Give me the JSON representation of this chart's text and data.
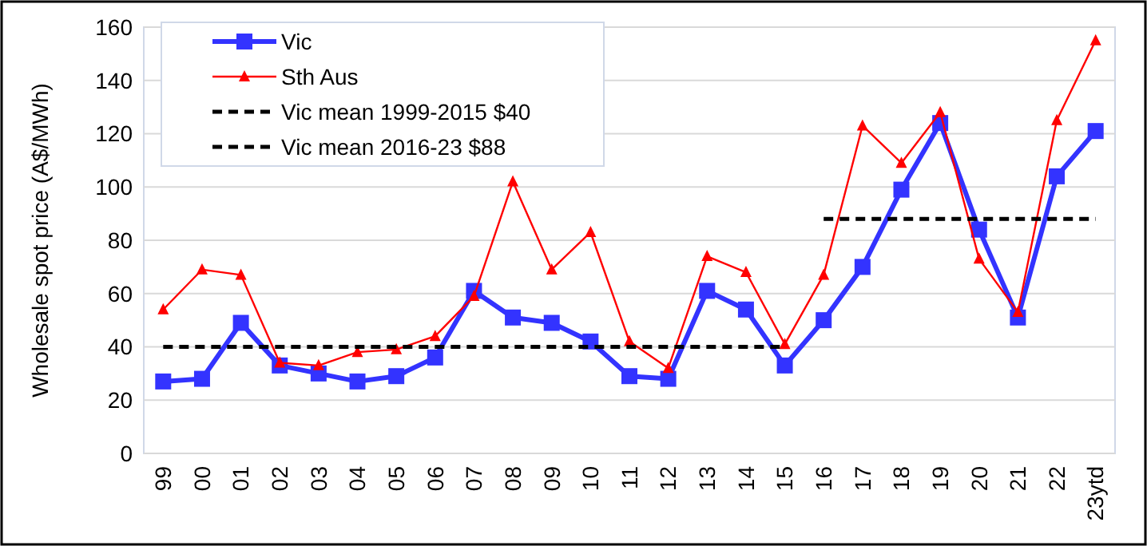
{
  "chart_data": {
    "type": "line",
    "ylabel": "Wholesale spot price (A$/MWh)",
    "categories": [
      "99",
      "00",
      "01",
      "02",
      "03",
      "04",
      "05",
      "06",
      "07",
      "08",
      "09",
      "10",
      "11",
      "12",
      "13",
      "14",
      "15",
      "16",
      "17",
      "18",
      "19",
      "20",
      "21",
      "22",
      "23ytd"
    ],
    "ylim": [
      0,
      160
    ],
    "yticks": [
      0,
      20,
      40,
      60,
      80,
      100,
      120,
      140,
      160
    ],
    "grid": "y",
    "legend": "top left",
    "series": [
      {
        "name": "Vic",
        "color": "#3333ff",
        "marker": "square",
        "line_style": "solid",
        "values": [
          27,
          28,
          49,
          33,
          30,
          27,
          29,
          36,
          61,
          51,
          49,
          42,
          29,
          28,
          61,
          54,
          33,
          50,
          70,
          99,
          124,
          84,
          51,
          104,
          121
        ]
      },
      {
        "name": "Sth Aus",
        "color": "#ff0000",
        "marker": "triangle",
        "line_style": "solid",
        "values": [
          54,
          69,
          67,
          34,
          33,
          38,
          39,
          44,
          59,
          102,
          69,
          83,
          42,
          32,
          74,
          68,
          41,
          67,
          123,
          109,
          128,
          73,
          53,
          125,
          155
        ]
      },
      {
        "name": "Vic mean 1999-2015 $40",
        "color": "#000000",
        "marker": "none",
        "line_style": "dashed",
        "values": [
          40,
          40,
          40,
          40,
          40,
          40,
          40,
          40,
          40,
          40,
          40,
          40,
          40,
          40,
          40,
          40,
          40,
          null,
          null,
          null,
          null,
          null,
          null,
          null,
          null
        ]
      },
      {
        "name": "Vic mean 2016-23 $88",
        "color": "#000000",
        "marker": "none",
        "line_style": "dashed",
        "values": [
          null,
          null,
          null,
          null,
          null,
          null,
          null,
          null,
          null,
          null,
          null,
          null,
          null,
          null,
          null,
          null,
          null,
          88,
          88,
          88,
          88,
          88,
          88,
          88,
          88
        ]
      }
    ]
  }
}
